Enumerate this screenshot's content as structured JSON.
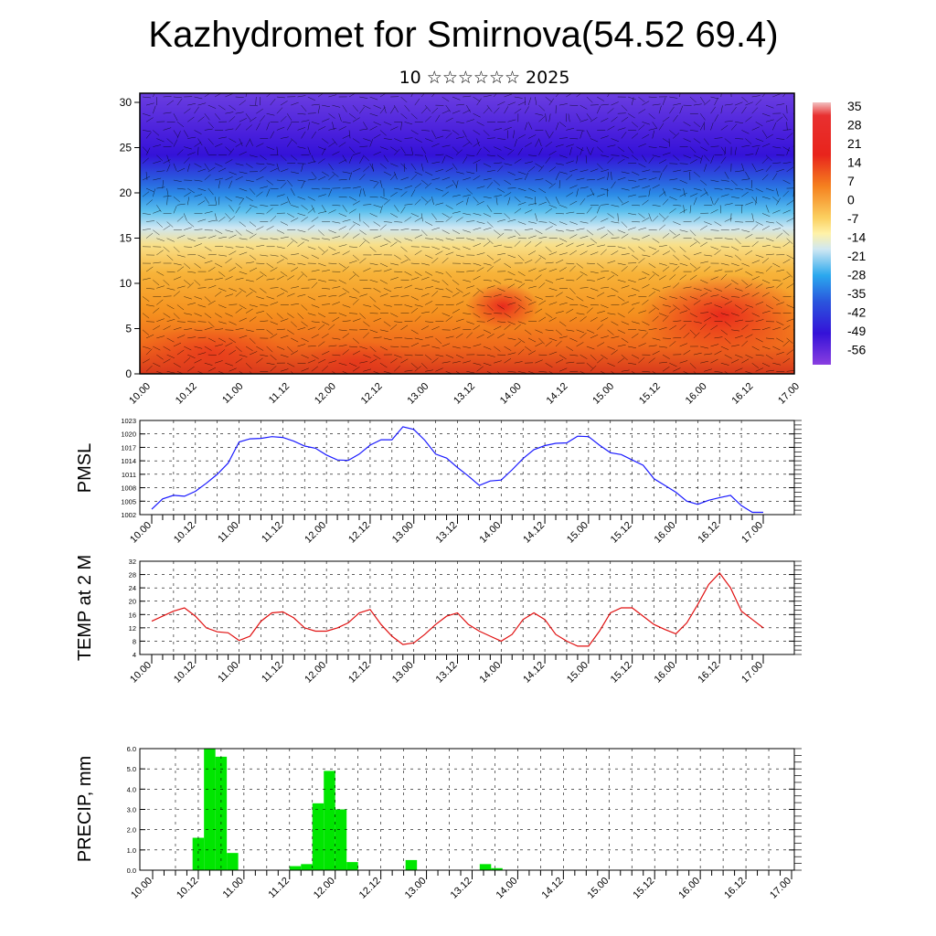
{
  "title": "Kazhydromet for Smirnova(54.52 69.4)",
  "subtitle": "10 ☆☆☆☆☆☆ 2025",
  "time_labels": [
    "10.00",
    "10.12",
    "11.00",
    "11.12",
    "12.00",
    "12.12",
    "13.00",
    "13.12",
    "14.00",
    "14.12",
    "15.00",
    "15.12",
    "16.00",
    "16.12",
    "17.00"
  ],
  "colors": {
    "pmsl_line": "#1a1aff",
    "temp_line": "#e01010",
    "precip_bar": "#00e600",
    "grid": "#000000"
  },
  "chart_data": [
    {
      "type": "heatmap",
      "ylim": [
        0,
        30
      ],
      "y_ticks": [
        0,
        5,
        10,
        15,
        20,
        25,
        30
      ],
      "x_ticks": [
        "10.00",
        "10.12",
        "11.00",
        "11.12",
        "12.00",
        "12.12",
        "13.00",
        "13.12",
        "14.00",
        "14.12",
        "15.00",
        "15.12",
        "16.00",
        "16.12",
        "17.00"
      ],
      "colorbar_labels": [
        "35",
        "28",
        "21",
        "14",
        "7",
        "0",
        "-7",
        "-14",
        "-21",
        "-28",
        "-35",
        "-42",
        "-49",
        "-56"
      ],
      "overlay": "wind barbs"
    },
    {
      "type": "line",
      "ylabel": "PMSL",
      "ylim": [
        1002,
        1023
      ],
      "y_ticks": [
        1002,
        1005,
        1008,
        1011,
        1014,
        1017,
        1020,
        1023
      ],
      "x_ticks": [
        "10.00",
        "10.12",
        "11.00",
        "11.12",
        "12.00",
        "12.12",
        "13.00",
        "13.12",
        "14.00",
        "14.12",
        "15.00",
        "15.12",
        "16.00",
        "16.12",
        "17.00"
      ],
      "x_hours": [
        0,
        3,
        6,
        9,
        12,
        15,
        18,
        21,
        24,
        27,
        30,
        33,
        36,
        39,
        42,
        45,
        48,
        51,
        54,
        57,
        60,
        63,
        66,
        69,
        72,
        75,
        78,
        81,
        84,
        87,
        90,
        93,
        96,
        99,
        102,
        105,
        108,
        111,
        114,
        117,
        120,
        123,
        126,
        129,
        132,
        135,
        138,
        141,
        144,
        147,
        150,
        153,
        156,
        159,
        162,
        165,
        168
      ],
      "values": [
        1003.2,
        1005.5,
        1006.3,
        1006.1,
        1007.2,
        1009,
        1011,
        1013.5,
        1018.2,
        1018.9,
        1019,
        1019.4,
        1019.2,
        1018.4,
        1017.3,
        1016.8,
        1015.3,
        1014.2,
        1014.1,
        1015.5,
        1017.5,
        1018.7,
        1018.7,
        1021.6,
        1021,
        1018.6,
        1015.5,
        1014.6,
        1012.5,
        1010.6,
        1008.5,
        1009.5,
        1009.7,
        1012,
        1014.5,
        1016.5,
        1017.4,
        1017.9,
        1018,
        1019.5,
        1019.4,
        1017.5,
        1015.8,
        1015.4,
        1014.2,
        1013,
        1010,
        1008.5,
        1007,
        1005,
        1004.3,
        1005.2,
        1005.8,
        1006.3,
        1004,
        1002.5,
        1002.5
      ],
      "series": [
        {
          "name": "",
          "values_ref": "values"
        }
      ]
    },
    {
      "type": "line",
      "ylabel": "TEMP at 2 M",
      "ylim": [
        4,
        32
      ],
      "y_ticks": [
        4,
        8,
        12,
        16,
        20,
        24,
        28,
        32
      ],
      "x_ticks": [
        "10.00",
        "10.12",
        "11.00",
        "11.12",
        "12.00",
        "12.12",
        "13.00",
        "13.12",
        "14.00",
        "14.12",
        "15.00",
        "15.12",
        "16.00",
        "16.12",
        "17.00"
      ],
      "x_hours": [
        0,
        6,
        9,
        12,
        15,
        18,
        21,
        24,
        27,
        30,
        33,
        36,
        39,
        42,
        45,
        48,
        51,
        54,
        57,
        60,
        63,
        66,
        69,
        72,
        75,
        78,
        81,
        84,
        87,
        90,
        93,
        96,
        99,
        102,
        105,
        108,
        111,
        114,
        117,
        120,
        123,
        126,
        129,
        132,
        135,
        138,
        141,
        144,
        147,
        150,
        153,
        156,
        159,
        162,
        165,
        168
      ],
      "values": [
        14,
        17,
        18,
        15.5,
        12,
        10.8,
        10.5,
        8.2,
        9.5,
        14,
        16.5,
        16.8,
        15,
        12,
        11,
        11,
        12,
        13.5,
        16.5,
        17.5,
        13,
        9.5,
        7,
        7.5,
        10,
        13,
        15.5,
        16.5,
        13,
        11,
        9.5,
        8,
        10,
        14.5,
        16.5,
        14.5,
        10,
        8,
        6.5,
        6.5,
        11,
        16.5,
        18,
        18,
        15.5,
        13,
        11.5,
        10.2,
        13.5,
        19,
        25,
        28.5,
        24,
        17,
        14.5,
        12
      ]
    },
    {
      "type": "bar",
      "ylabel": "PRECIP, mm",
      "ylim": [
        0,
        6
      ],
      "y_tick_labels": [
        "0.0",
        "1.0",
        "2.0",
        "3.0",
        "4.0",
        "5.0",
        "6.0"
      ],
      "x_ticks": [
        "10.00",
        "10.12",
        "11.00",
        "11.12",
        "12.00",
        "12.12",
        "13.00",
        "13.12",
        "14.00",
        "14.12",
        "15.00",
        "15.12",
        "16.00",
        "16.12",
        "17.00"
      ],
      "bar_width_hours": 3,
      "bars": [
        {
          "start_hour": 10.5,
          "value": 1.6
        },
        {
          "start_hour": 13.5,
          "value": 6.0
        },
        {
          "start_hour": 16.5,
          "value": 5.6
        },
        {
          "start_hour": 19.5,
          "value": 0.85
        },
        {
          "start_hour": 36,
          "value": 0.2
        },
        {
          "start_hour": 39,
          "value": 0.3
        },
        {
          "start_hour": 42,
          "value": 3.3
        },
        {
          "start_hour": 45,
          "value": 4.9
        },
        {
          "start_hour": 48,
          "value": 3.0
        },
        {
          "start_hour": 51,
          "value": 0.4
        },
        {
          "start_hour": 66.5,
          "value": 0.5
        },
        {
          "start_hour": 86,
          "value": 0.3
        },
        {
          "start_hour": 89,
          "value": 0.1
        }
      ]
    }
  ]
}
